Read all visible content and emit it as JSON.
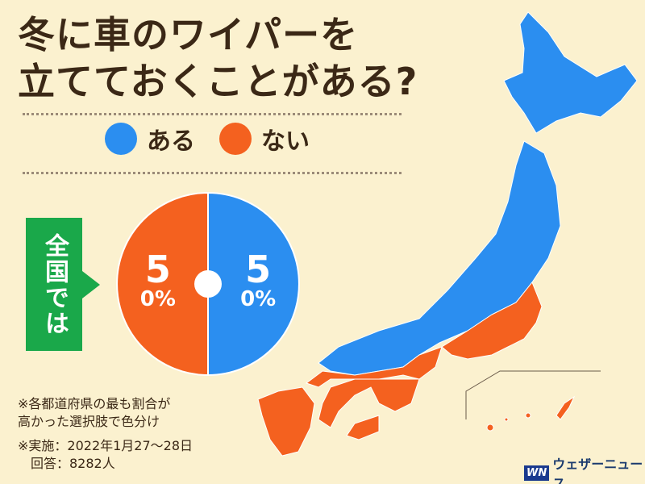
{
  "header": {
    "title": "冬に車のワイパーを\n立てておくことがある?"
  },
  "chart_data": {
    "type": "pie",
    "categories": [
      "ある",
      "ない"
    ],
    "values": [
      50,
      50
    ],
    "value_labels": [
      "50%",
      "50%"
    ],
    "colors": [
      "#2b8ef0",
      "#f4611f"
    ],
    "label": "全国では"
  },
  "notes": [
    "※各都道府県の最も割合が\n高かった選択肢で色分け",
    "※実施：2022年1月27～28日",
    "回答：8282人"
  ],
  "logo": {
    "mark": "WN",
    "text": "ウェザーニュース"
  }
}
